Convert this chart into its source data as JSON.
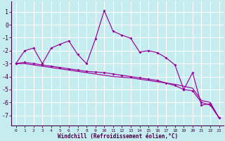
{
  "xlabel": "Windchill (Refroidissement éolien,°C)",
  "background_color": "#c5edf0",
  "grid_color": "#ffffff",
  "line_color": "#990099",
  "x_ticks": [
    0,
    1,
    2,
    3,
    4,
    5,
    6,
    7,
    8,
    9,
    10,
    11,
    12,
    13,
    14,
    15,
    16,
    17,
    18,
    19,
    20,
    21,
    22,
    23
  ],
  "y_ticks": [
    1,
    0,
    -1,
    -2,
    -3,
    -4,
    -5,
    -6,
    -7
  ],
  "ylim": [
    -7.8,
    1.8
  ],
  "xlim": [
    -0.5,
    23.5
  ],
  "series1_y": [
    -3.0,
    -2.0,
    -1.8,
    -3.0,
    -1.8,
    -1.5,
    -1.25,
    -2.3,
    -3.0,
    -1.1,
    1.1,
    -0.5,
    -0.8,
    -1.05,
    -2.1,
    -2.0,
    -2.15,
    -2.55,
    -3.1,
    -5.0,
    -3.7,
    -6.2,
    -6.1,
    -7.2
  ],
  "series2_y": [
    -3.0,
    -2.9,
    -3.0,
    -3.1,
    -3.2,
    -3.3,
    -3.4,
    -3.5,
    -3.6,
    -3.65,
    -3.7,
    -3.8,
    -3.9,
    -4.0,
    -4.1,
    -4.2,
    -4.3,
    -4.5,
    -4.7,
    -5.0,
    -5.1,
    -6.0,
    -6.2,
    -7.2
  ],
  "series3_y": [
    -3.0,
    -3.0,
    -3.1,
    -3.2,
    -3.3,
    -3.4,
    -3.5,
    -3.6,
    -3.7,
    -3.8,
    -3.9,
    -4.0,
    -4.05,
    -4.1,
    -4.2,
    -4.3,
    -4.4,
    -4.5,
    -4.6,
    -4.75,
    -4.9,
    -5.85,
    -6.0,
    -7.2
  ],
  "xlabel_fontsize": 5.5,
  "ytick_fontsize": 6.0,
  "xtick_fontsize": 4.5
}
